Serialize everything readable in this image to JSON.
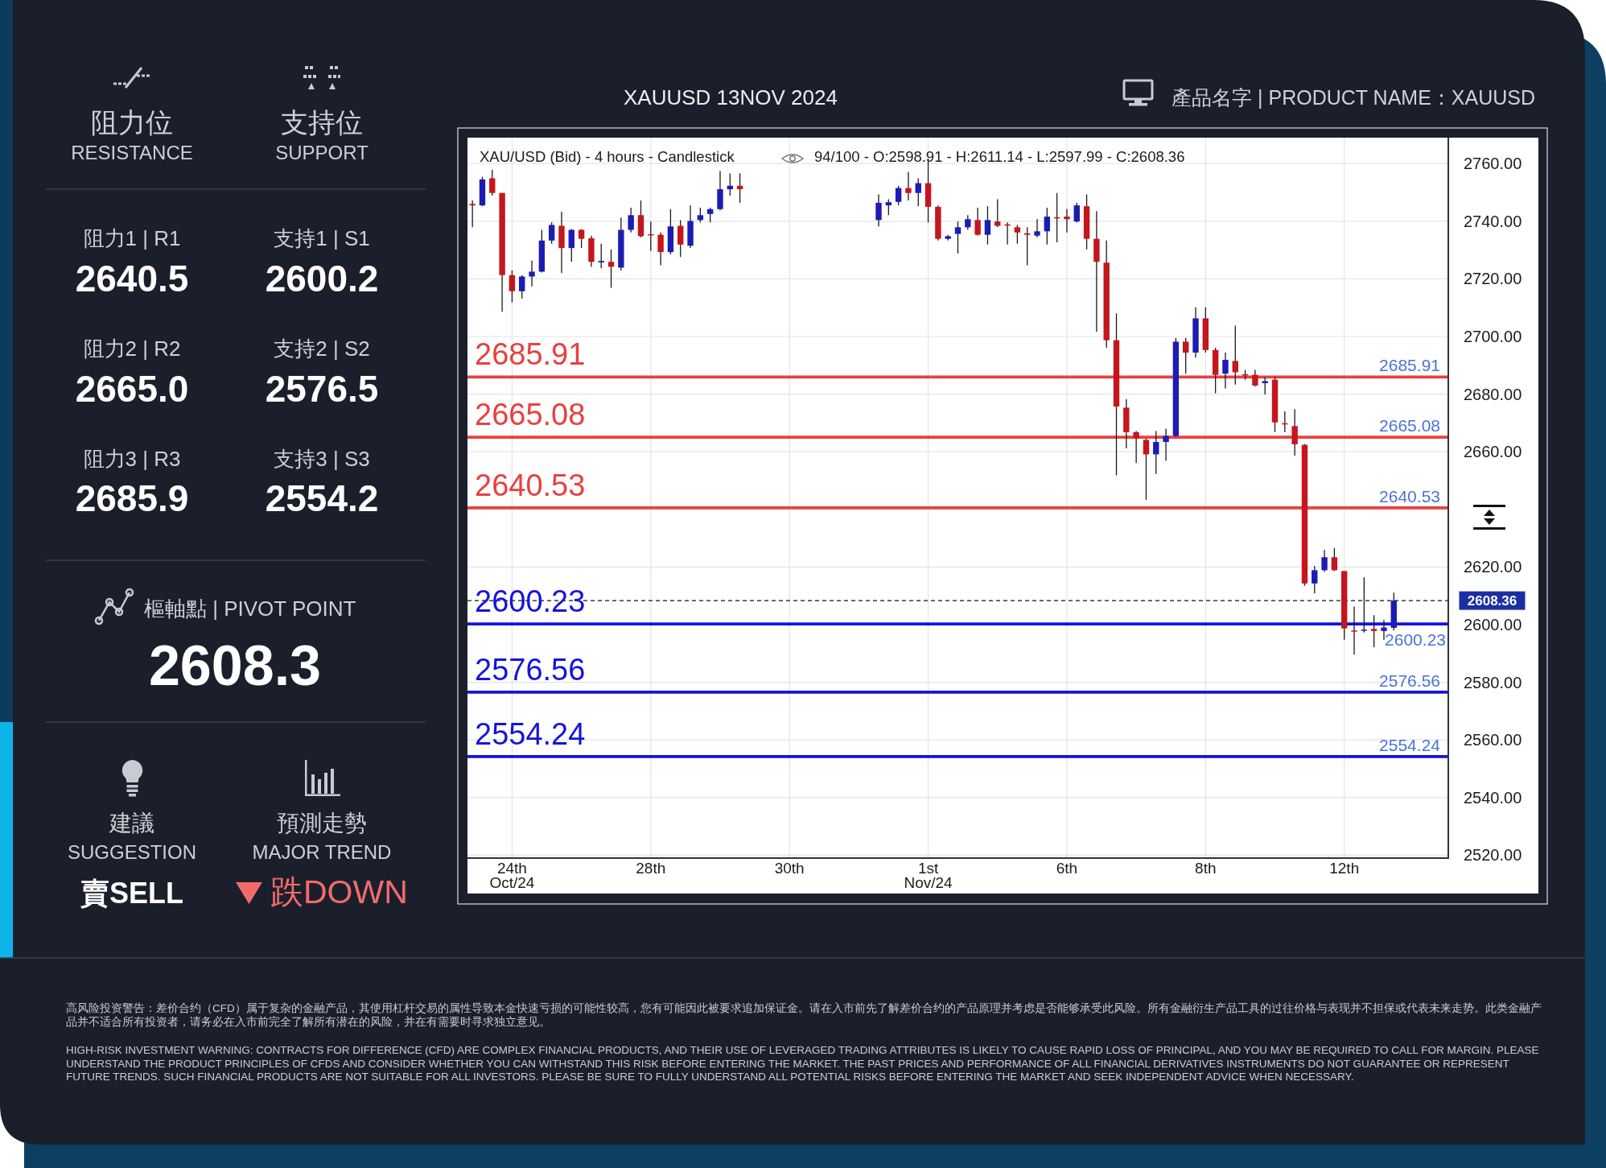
{
  "chart_data": [
    {
      "type": "other",
      "annotations": [
        "阻力位",
        "RESISTANCE",
        "支持位",
        "SUPPORT",
        "阻力1 | R1",
        "2640.5",
        "支持1 | S1",
        "2600.2",
        "阻力2 | R2",
        "2665.0",
        "支持2 | S2",
        "2576.5",
        "阻力3 | R3",
        "2685.9",
        "支持3 | S3",
        "2554.2",
        "樞軸點 | PIVOT POINT",
        "2608.3",
        "建議",
        "SUGGESTION",
        "賣SELL",
        "預測走勢",
        "MAJOR TREND",
        "跌DOWN"
      ]
    },
    {
      "type": "candlestick",
      "title": "XAUUSD 13NOV 2024",
      "subtitle": "產品名字 | PRODUCT NAME：XAUUSD",
      "annotations": [
        "XAU/USD (Bid) - 4 hours - Candlestick",
        "94/100 - O:2598.91 - H:2611.14 - L:2597.99 - C:2608.36",
        "高风险投资警告：差价合约（CFD）属于复杂的金融产品，其使用杠杆交易的属性导致本金快速亏损的可能性较高，您有可能因此被要求追加保证金。请在入市前先了解差价合约的产品原理并考虑是否能够承受此风险。所有金融衍生产品工具的过往价格与表现并不担保或代表未来走势。此类金融产品并不适合所有投资者，请务必在入市前完全了解所有潜在的风险，并在有需要时寻求独立意见。",
        "HIGH-RISK INVESTMENT WARNING: CONTRACTS FOR DIFFERENCE (CFD) ARE COMPLEX FINANCIAL PRODUCTS, AND THEIR USE OF LEVERAGED TRADING ATTRIBUTES IS LIKELY TO CAUSE RAPID LOSS OF PRINCIPAL, AND YOU MAY BE REQUIRED TO CALL FOR MARGIN. PLEASE UNDERSTAND THE PRODUCT PRINCIPLES OF CFDS AND CONSIDER WHETHER YOU CAN WITHSTAND THIS RISK BEFORE ENTERING THE MARKET. THE PAST PRICES AND PERFORMANCE OF ALL FINANCIAL DERIVATIVES INSTRUMENTS DO NOT GUARANTEE OR REPRESENT FUTURE TRENDS. SUCH FINANCIAL PRODUCTS ARE NOT SUITABLE FOR ALL INVESTORS. PLEASE BE SURE TO FULLY UNDERSTAND ALL POTENTIAL RISKS BEFORE ENTERING THE MARKET AND SEEK INDEPENDENT ADVICE WHEN NECESSARY."
      ],
      "categories": [
        null,
        null,
        null,
        null,
        "24th\nOct/24",
        null,
        null,
        null,
        null,
        null,
        null,
        null,
        null,
        null,
        null,
        null,
        null,
        null,
        "28th",
        null,
        null,
        null,
        null,
        null,
        null,
        null,
        null,
        null,
        null,
        null,
        null,
        null,
        "30th",
        null,
        null,
        null,
        null,
        null,
        null,
        null,
        null,
        null,
        null,
        null,
        null,
        null,
        "1st\nNov/24",
        null,
        null,
        null,
        null,
        null,
        null,
        null,
        null,
        null,
        null,
        null,
        null,
        null,
        "6th",
        null,
        null,
        null,
        null,
        null,
        null,
        null,
        null,
        null,
        null,
        null,
        null,
        null,
        "8th",
        null,
        null,
        null,
        null,
        null,
        null,
        null,
        null,
        null,
        null,
        null,
        null,
        null,
        "12th",
        null,
        null,
        null,
        null,
        null,
        null,
        null,
        null,
        null,
        null
      ],
      "ohlc": [
        [
          2746.0,
          2747.2,
          2737.9,
          2745.5
        ],
        [
          2745.5,
          2755.4,
          2745.2,
          2754.5
        ],
        [
          2754.9,
          2757.8,
          2748.9,
          2749.8
        ],
        [
          2749.8,
          2749.8,
          2708.6,
          2721.3
        ],
        [
          2721.3,
          2722.9,
          2711.8,
          2715.7
        ],
        [
          2715.7,
          2721.2,
          2713.2,
          2720.8
        ],
        [
          2720.8,
          2726.3,
          2717.4,
          2722.5
        ],
        [
          2722.5,
          2737.0,
          2722.2,
          2733.3
        ],
        [
          2733.3,
          2739.6,
          2732.2,
          2738.7
        ],
        [
          2738.4,
          2743.3,
          2722.0,
          2730.7
        ],
        [
          2730.7,
          2737.3,
          2725.9,
          2737.0
        ],
        [
          2737.0,
          2737.3,
          2730.7,
          2733.9
        ],
        [
          2734.1,
          2735.0,
          2724.2,
          2725.9
        ],
        [
          2725.7,
          2732.2,
          2723.7,
          2726.2
        ],
        [
          2725.9,
          2730.2,
          2716.9,
          2724.2
        ],
        [
          2723.9,
          2741.3,
          2722.9,
          2737.0
        ],
        [
          2737.0,
          2744.7,
          2736.1,
          2742.1
        ],
        [
          2742.1,
          2747.2,
          2734.4,
          2734.8
        ],
        [
          2735.5,
          2739.9,
          2729.7,
          2735.2
        ],
        [
          2735.3,
          2736.1,
          2724.7,
          2729.3
        ],
        [
          2729.3,
          2744.2,
          2728.5,
          2738.2
        ],
        [
          2738.4,
          2740.4,
          2727.6,
          2731.9
        ],
        [
          2731.5,
          2745.5,
          2730.7,
          2740.1
        ],
        [
          2740.4,
          2744.7,
          2739.6,
          2742.1
        ],
        [
          2742.5,
          2744.7,
          2739.6,
          2744.2
        ],
        [
          2744.2,
          2757.4,
          2743.8,
          2751.1
        ],
        [
          2751.1,
          2756.6,
          2748.9,
          2752.3
        ],
        [
          2752.3,
          2756.6,
          2746.4,
          2751.1
        ],
        null,
        null,
        null,
        null,
        null,
        null,
        null,
        null,
        null,
        null,
        null,
        null,
        null,
        [
          2740.4,
          2749.3,
          2738.2,
          2746.4
        ],
        [
          2745.5,
          2747.6,
          2742.1,
          2746.6
        ],
        [
          2746.7,
          2752.3,
          2745.5,
          2751.5
        ],
        [
          2751.5,
          2757.1,
          2747.2,
          2749.8
        ],
        [
          2749.8,
          2754.9,
          2745.2,
          2753.2
        ],
        [
          2753.2,
          2761.7,
          2739.6,
          2745.0
        ],
        [
          2745.0,
          2745.5,
          2733.3,
          2733.9
        ],
        [
          2733.9,
          2735.3,
          2733.3,
          2734.8
        ],
        [
          2735.6,
          2739.9,
          2728.8,
          2737.9
        ],
        [
          2737.9,
          2742.1,
          2737.0,
          2740.7
        ],
        [
          2740.4,
          2744.7,
          2735.0,
          2735.3
        ],
        [
          2735.3,
          2745.2,
          2731.9,
          2740.4
        ],
        [
          2739.9,
          2747.6,
          2737.9,
          2738.4
        ],
        [
          2738.9,
          2739.6,
          2731.9,
          2738.5
        ],
        [
          2737.9,
          2738.7,
          2732.2,
          2736.1
        ],
        [
          2735.8,
          2737.9,
          2724.7,
          2735.3
        ],
        [
          2735.0,
          2740.7,
          2734.4,
          2736.5
        ],
        [
          2736.5,
          2744.7,
          2731.9,
          2741.6
        ],
        [
          2741.4,
          2749.8,
          2732.7,
          2741.1
        ],
        [
          2741.6,
          2744.2,
          2736.1,
          2740.7
        ],
        [
          2739.9,
          2746.4,
          2739.6,
          2745.5
        ],
        [
          2745.2,
          2749.3,
          2730.2,
          2733.9
        ],
        [
          2733.9,
          2743.5,
          2701.6,
          2725.9
        ],
        [
          2725.6,
          2733.3,
          2696.1,
          2698.7
        ],
        [
          2698.7,
          2708.0,
          2651.8,
          2675.7
        ],
        [
          2675.3,
          2678.2,
          2661.2,
          2666.8
        ],
        [
          2666.8,
          2667.2,
          2656.1,
          2664.6
        ],
        [
          2664.1,
          2664.6,
          2643.3,
          2659.1
        ],
        [
          2659.1,
          2667.2,
          2652.3,
          2663.4
        ],
        [
          2663.4,
          2668.0,
          2656.9,
          2665.5
        ],
        [
          2665.5,
          2699.5,
          2665.1,
          2698.2
        ],
        [
          2698.2,
          2699.5,
          2687.1,
          2694.4
        ],
        [
          2694.4,
          2710.1,
          2692.7,
          2706.3
        ],
        [
          2706.3,
          2710.1,
          2694.4,
          2695.3
        ],
        [
          2695.3,
          2696.1,
          2680.3,
          2686.7
        ],
        [
          2687.1,
          2694.4,
          2682.0,
          2691.9
        ],
        [
          2691.5,
          2703.8,
          2683.3,
          2687.6
        ],
        [
          2686.9,
          2688.4,
          2685.0,
          2686.5
        ],
        [
          2686.7,
          2688.4,
          2682.7,
          2683.0
        ],
        [
          2683.8,
          2685.9,
          2679.9,
          2684.5
        ],
        [
          2685.0,
          2685.9,
          2666.8,
          2670.2
        ],
        [
          2669.9,
          2674.0,
          2666.8,
          2669.5
        ],
        [
          2668.9,
          2674.8,
          2658.6,
          2662.6
        ],
        [
          2662.4,
          2662.7,
          2613.5,
          2614.3
        ],
        [
          2614.3,
          2620.3,
          2610.9,
          2618.9
        ],
        [
          2618.9,
          2625.9,
          2618.3,
          2623.4
        ],
        [
          2623.4,
          2626.6,
          2618.6,
          2618.9
        ],
        [
          2618.6,
          2618.6,
          2594.8,
          2598.7
        ],
        [
          2598.0,
          2606.3,
          2589.6,
          2597.6
        ],
        [
          2598.0,
          2616.4,
          2597.3,
          2598.3
        ],
        [
          2598.5,
          2603.3,
          2592.2,
          2597.8
        ],
        [
          2597.8,
          2601.6,
          2594.8,
          2599.0
        ],
        [
          2598.91,
          2611.14,
          2597.99,
          2608.36
        ],
        null,
        null,
        null,
        null,
        null
      ],
      "colors": [
        "#c4161c",
        "#1c1cb4",
        "#c4161c",
        "#c4161c",
        "#c4161c",
        "#1c1cb4",
        "#1c1cb4",
        "#1c1cb4",
        "#1c1cb4",
        "#c4161c",
        "#1c1cb4",
        "#c4161c",
        "#c4161c",
        "#1c1cb4",
        "#c4161c",
        "#1c1cb4",
        "#1c1cb4",
        "#c4161c",
        "#c4161c",
        "#c4161c",
        "#1c1cb4",
        "#c4161c",
        "#1c1cb4",
        "#1c1cb4",
        "#1c1cb4",
        "#1c1cb4",
        "#1c1cb4",
        "#c4161c",
        null,
        null,
        null,
        null,
        null,
        null,
        null,
        null,
        null,
        null,
        null,
        null,
        null,
        "#1c1cb4",
        "#1c1cb4",
        "#1c1cb4",
        "#c4161c",
        "#1c1cb4",
        "#c4161c",
        "#c4161c",
        "#1c1cb4",
        "#1c1cb4",
        "#1c1cb4",
        "#c4161c",
        "#1c1cb4",
        "#c4161c",
        "#c4161c",
        "#c4161c",
        "#c4161c",
        "#1c1cb4",
        "#1c1cb4",
        "#c4161c",
        "#c4161c",
        "#1c1cb4",
        "#c4161c",
        "#c4161c",
        "#c4161c",
        "#c4161c",
        "#c4161c",
        "#c4161c",
        "#c4161c",
        "#1c1cb4",
        "#1c1cb4",
        "#1c1cb4",
        "#c4161c",
        "#1c1cb4",
        "#c4161c",
        "#c4161c",
        "#1c1cb4",
        "#c4161c",
        "#c4161c",
        "#c4161c",
        "#1c1cb4",
        "#c4161c",
        "#c4161c",
        "#c4161c",
        "#c4161c",
        "#1c1cb4",
        "#1c1cb4",
        "#c4161c",
        "#c4161c",
        "#c4161c",
        "#1c1cb4",
        "#c4161c",
        "#1c1cb4",
        "#1c1cb4",
        null,
        null,
        null,
        null,
        null
      ],
      "ylim": [
        2519,
        2769
      ],
      "yticks": [
        {
          "value": 2520,
          "label": "2520.00"
        },
        {
          "value": 2540,
          "label": "2540.00"
        },
        {
          "value": 2560,
          "label": "2560.00"
        },
        {
          "value": 2580,
          "label": "2580.00"
        },
        {
          "value": 2600,
          "label": "2600.00"
        },
        {
          "value": 2620,
          "label": "2620.00"
        },
        {
          "value": 2640,
          "label": null
        },
        {
          "value": 2660,
          "label": "2660.00"
        },
        {
          "value": 2680,
          "label": "2680.00"
        },
        {
          "value": 2700,
          "label": "2700.00"
        },
        {
          "value": 2720,
          "label": "2720.00"
        },
        {
          "value": 2740,
          "label": "2740.00"
        },
        {
          "value": 2760,
          "label": "2760.00"
        }
      ],
      "grid": true,
      "ref_lines": [
        {
          "axis": "y",
          "value": 2685.91,
          "label": "2685.91",
          "color": "#e8413f",
          "line_style": "solid"
        },
        {
          "axis": "y",
          "value": 2665.08,
          "label": "2665.08",
          "color": "#e8413f",
          "line_style": "solid"
        },
        {
          "axis": "y",
          "value": 2640.53,
          "label": "2640.53",
          "color": "#e8413f",
          "line_style": "solid"
        },
        {
          "axis": "y",
          "value": 2608.36,
          "label": "2608.36",
          "color": "#111111",
          "line_style": "dashed"
        },
        {
          "axis": "y",
          "value": 2600.23,
          "label": "2600.23",
          "color": "#1414dc",
          "line_style": "solid"
        },
        {
          "axis": "y",
          "value": 2576.56,
          "label": "2576.56",
          "color": "#1414dc",
          "line_style": "solid"
        },
        {
          "axis": "y",
          "value": 2554.24,
          "label": "2554.24",
          "color": "#1414dc",
          "line_style": "solid"
        }
      ]
    }
  ]
}
